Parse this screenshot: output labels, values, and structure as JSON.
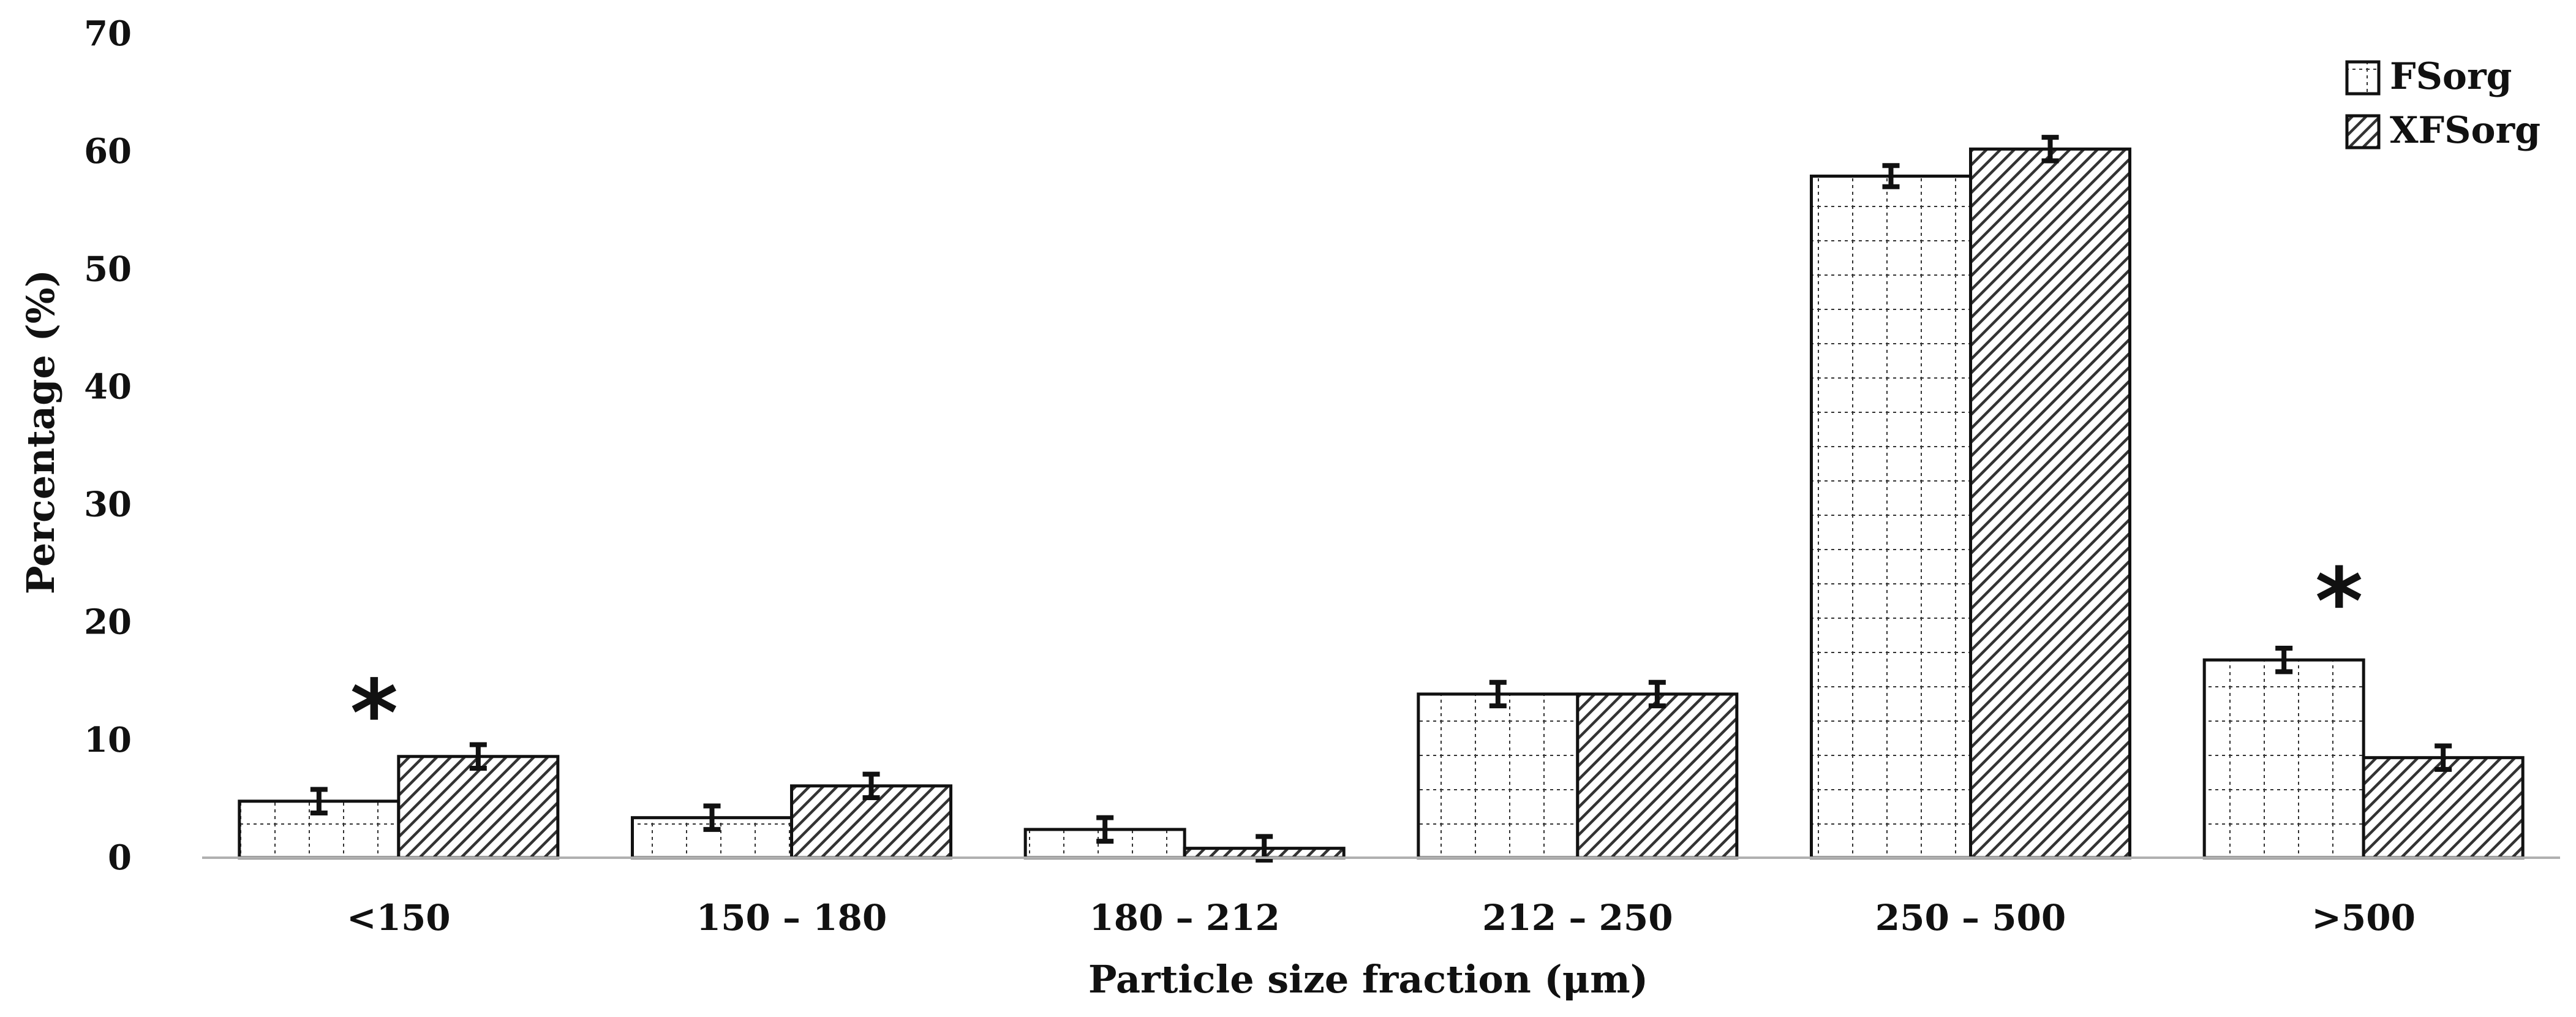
{
  "chart_data": {
    "type": "bar",
    "title": "",
    "xlabel": "Particle size fraction (μm)",
    "ylabel": "Percentage (%)",
    "ylim": [
      0,
      70
    ],
    "yticks": [
      "0",
      "10",
      "20",
      "30",
      "40",
      "50",
      "60",
      "70"
    ],
    "categories": [
      "<150",
      "150 – 180",
      "180 – 212",
      "212 – 250",
      "250 – 500",
      ">500"
    ],
    "series": [
      {
        "name": "FSorg",
        "pattern": "dotted-grid",
        "values": [
          4.8,
          3.4,
          2.4,
          13.9,
          57.9,
          16.8
        ],
        "errors": [
          1.0,
          1.0,
          1.0,
          1.0,
          0.9,
          1.0
        ]
      },
      {
        "name": "XFSorg",
        "pattern": "diagonal-hatch",
        "values": [
          8.6,
          6.1,
          0.8,
          13.9,
          60.2,
          8.5
        ],
        "errors": [
          1.0,
          1.0,
          1.0,
          1.0,
          1.0,
          1.0
        ]
      }
    ],
    "annotations": [
      {
        "text": "*",
        "category": "<150",
        "y": 14.5
      },
      {
        "text": "*",
        "category": ">500",
        "y": 24
      }
    ],
    "legend_position": "top-right",
    "grid": false,
    "colors": {
      "bar_stroke": "#111111",
      "axis": "#b0b0b0",
      "hatch": "#333333"
    }
  }
}
